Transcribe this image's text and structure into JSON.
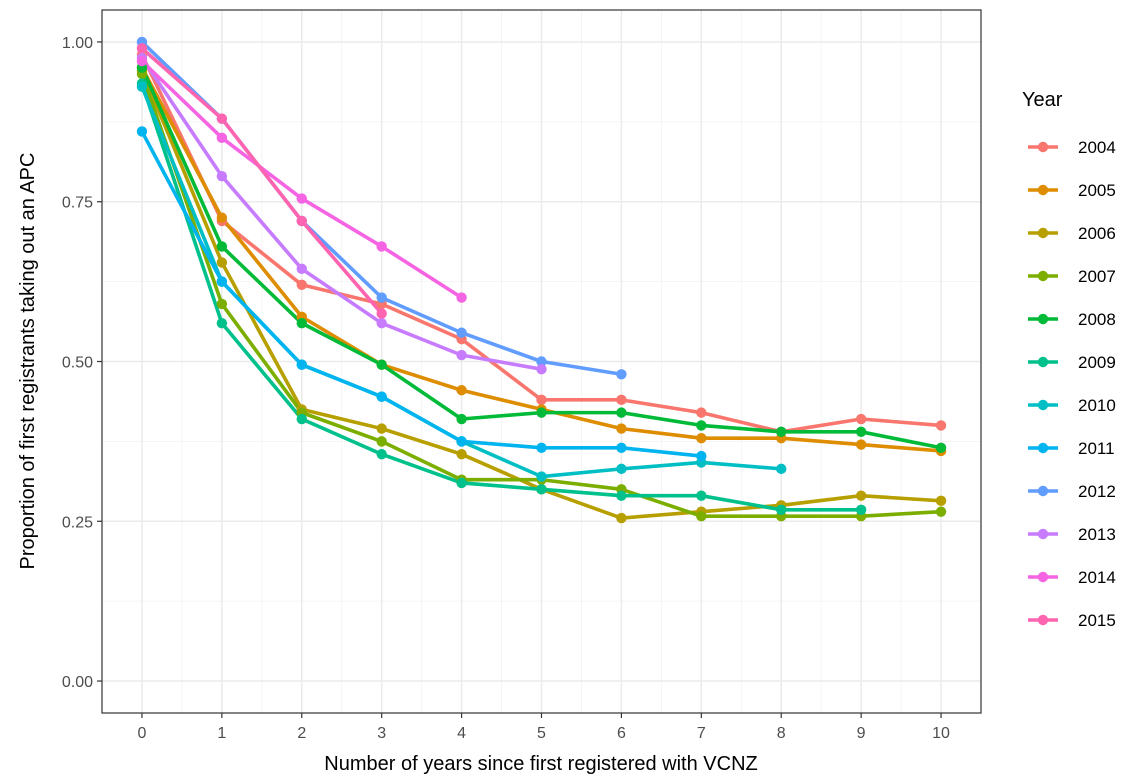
{
  "chart_data": {
    "type": "line",
    "xlabel": "Number of years since first registered with VCNZ",
    "ylabel": "Proportion of first registrants taking out an APC",
    "xlim": [
      -0.5,
      10.5
    ],
    "ylim": [
      -0.05,
      1.05
    ],
    "x_ticks": [
      0,
      1,
      2,
      3,
      4,
      5,
      6,
      7,
      8,
      9,
      10
    ],
    "x_tick_labels": [
      "0",
      "1",
      "2",
      "3",
      "4",
      "5",
      "6",
      "7",
      "8",
      "9",
      "10"
    ],
    "y_ticks": [
      0,
      0.25,
      0.5,
      0.75,
      1
    ],
    "y_tick_labels": [
      "0.00",
      "0.25",
      "0.50",
      "0.75",
      "1.00"
    ],
    "grid": true,
    "legend": {
      "title": "Year",
      "position": "right"
    },
    "series": [
      {
        "name": "2004",
        "color": "#F8766D",
        "x": [
          0,
          1,
          2,
          3,
          4,
          5,
          6,
          7,
          8,
          9,
          10
        ],
        "y": [
          0.98,
          0.72,
          0.62,
          0.59,
          0.535,
          0.44,
          0.44,
          0.42,
          0.39,
          0.41,
          0.4
        ]
      },
      {
        "name": "2005",
        "color": "#DE8C00",
        "x": [
          0,
          1,
          2,
          3,
          4,
          5,
          6,
          7,
          8,
          9,
          10
        ],
        "y": [
          0.96,
          0.725,
          0.57,
          0.495,
          0.455,
          0.425,
          0.395,
          0.38,
          0.38,
          0.37,
          0.36
        ]
      },
      {
        "name": "2006",
        "color": "#B79F00",
        "x": [
          0,
          1,
          2,
          3,
          4,
          5,
          6,
          7,
          8,
          9,
          10
        ],
        "y": [
          0.955,
          0.655,
          0.425,
          0.395,
          0.355,
          0.3,
          0.255,
          0.265,
          0.275,
          0.29,
          0.282
        ]
      },
      {
        "name": "2007",
        "color": "#7CAE00",
        "x": [
          0,
          1,
          2,
          3,
          4,
          5,
          6,
          7,
          8,
          9,
          10
        ],
        "y": [
          0.95,
          0.59,
          0.42,
          0.375,
          0.315,
          0.315,
          0.3,
          0.258,
          0.258,
          0.258,
          0.265
        ]
      },
      {
        "name": "2008",
        "color": "#00BA38",
        "x": [
          0,
          1,
          2,
          3,
          4,
          5,
          6,
          7,
          8,
          9,
          10
        ],
        "y": [
          0.96,
          0.68,
          0.56,
          0.495,
          0.41,
          0.42,
          0.42,
          0.4,
          0.39,
          0.39,
          0.365
        ]
      },
      {
        "name": "2009",
        "color": "#00C08B",
        "x": [
          0,
          1,
          2,
          3,
          4,
          5,
          6,
          7,
          8,
          9
        ],
        "y": [
          0.935,
          0.56,
          0.41,
          0.355,
          0.31,
          0.3,
          0.29,
          0.29,
          0.268,
          0.268
        ]
      },
      {
        "name": "2010",
        "color": "#00BFC4",
        "x": [
          0,
          1,
          2,
          3,
          4,
          5,
          6,
          7,
          8
        ],
        "y": [
          0.93,
          0.625,
          0.495,
          0.445,
          0.375,
          0.32,
          0.332,
          0.342,
          0.332
        ]
      },
      {
        "name": "2011",
        "color": "#00B4F0",
        "x": [
          0,
          1,
          2,
          3,
          4,
          5,
          6,
          7
        ],
        "y": [
          0.86,
          0.625,
          0.495,
          0.445,
          0.375,
          0.365,
          0.365,
          0.352
        ]
      },
      {
        "name": "2012",
        "color": "#619CFF",
        "x": [
          0,
          1,
          2,
          3,
          4,
          5,
          6
        ],
        "y": [
          1.0,
          0.88,
          0.72,
          0.6,
          0.545,
          0.5,
          0.48
        ]
      },
      {
        "name": "2013",
        "color": "#C77CFF",
        "x": [
          0,
          1,
          2,
          3,
          4,
          5
        ],
        "y": [
          0.975,
          0.79,
          0.645,
          0.56,
          0.51,
          0.488
        ]
      },
      {
        "name": "2014",
        "color": "#F564E3",
        "x": [
          0,
          1,
          2,
          3,
          4
        ],
        "y": [
          0.97,
          0.85,
          0.755,
          0.68,
          0.6
        ]
      },
      {
        "name": "2015",
        "color": "#FF64B0",
        "x": [
          0,
          1,
          2,
          3
        ],
        "y": [
          0.99,
          0.88,
          0.72,
          0.575
        ]
      }
    ]
  }
}
